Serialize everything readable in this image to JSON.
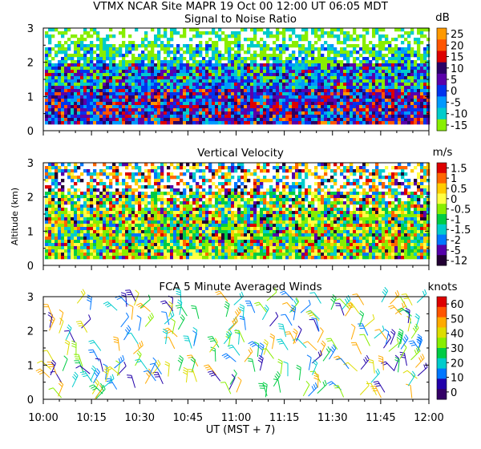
{
  "header": {
    "title": "VTMX   NCAR Site   MAPR 19 Oct 00   12:00 UT   06:05   MDT"
  },
  "x_axis": {
    "ticks": [
      "10:00",
      "10:15",
      "10:30",
      "10:45",
      "11:00",
      "11:15",
      "11:30",
      "11:45",
      "12:00"
    ],
    "label": "UT   (MST + 7)"
  },
  "chart_data": [
    {
      "type": "heatmap",
      "title": "Signal to Noise Ratio",
      "x_range": [
        "10:00",
        "12:00"
      ],
      "ylim": [
        0,
        3
      ],
      "ytick_labels": [
        "0",
        "1",
        "2",
        "3"
      ],
      "units": "dB",
      "colorbar": {
        "labels": [
          "25",
          "20",
          "15",
          "10",
          "5",
          "0",
          "-5",
          "-10",
          "-15"
        ],
        "colors": [
          "#ff9900",
          "#ff5500",
          "#dd0000",
          "#2a0066",
          "#5a00aa",
          "#0033ee",
          "#0099ff",
          "#00cccc",
          "#88ee00"
        ]
      }
    },
    {
      "type": "heatmap",
      "title": "Vertical Velocity",
      "x_range": [
        "10:00",
        "12:00"
      ],
      "ylim": [
        0,
        3
      ],
      "ylabel": "Altitude (km)",
      "ytick_labels": [
        "0",
        "1",
        "2",
        "3"
      ],
      "units": "m/s",
      "colorbar": {
        "labels": [
          "1.5",
          "1",
          "0.5",
          "0",
          "-0.5",
          "-1",
          "-1.5",
          "-2",
          "-5",
          "-12"
        ],
        "colors": [
          "#dd0000",
          "#ff6600",
          "#ffcc00",
          "#ffff44",
          "#88ee00",
          "#00cc44",
          "#00cccc",
          "#0077ff",
          "#5500aa",
          "#220033"
        ]
      }
    },
    {
      "type": "scatter",
      "title": "FCA 5 Minute Averaged Winds",
      "x_range": [
        "10:00",
        "12:00"
      ],
      "ylim": [
        0,
        3
      ],
      "ytick_labels": [
        "0",
        "1",
        "2",
        "3"
      ],
      "units": "knots",
      "colorbar": {
        "labels": [
          "60",
          "50",
          "40",
          "30",
          "20",
          "10",
          "0"
        ],
        "colors": [
          "#dd0000",
          "#ff5500",
          "#ffaa00",
          "#dddd00",
          "#88ee00",
          "#00cc44",
          "#00cccc",
          "#0077ff",
          "#2200aa",
          "#330066"
        ]
      }
    }
  ]
}
